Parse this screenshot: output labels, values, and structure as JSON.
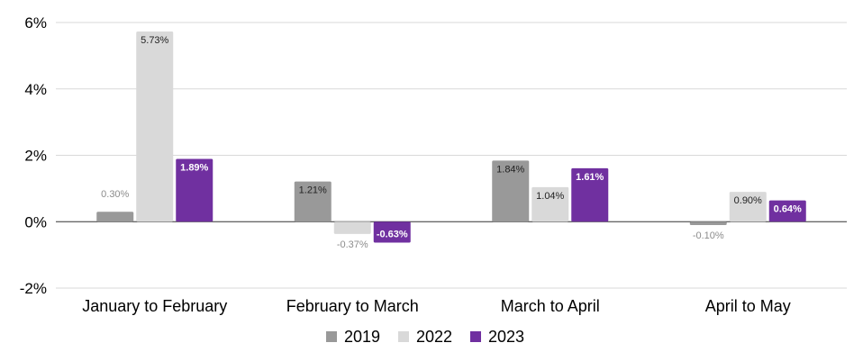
{
  "chart_data": {
    "type": "bar",
    "categories": [
      "January to February",
      "February to March",
      "March to April",
      "April to May"
    ],
    "series": [
      {
        "name": "2019",
        "color": "#999999",
        "values": [
          0.3,
          1.21,
          1.84,
          -0.1
        ],
        "labels": [
          "0.30%",
          "1.21%",
          "1.84%",
          "-0.10%"
        ]
      },
      {
        "name": "2022",
        "color": "#d9d9d9",
        "values": [
          5.73,
          -0.37,
          1.04,
          0.9
        ],
        "labels": [
          "5.73%",
          "-0.37%",
          "1.04%",
          "0.90%"
        ]
      },
      {
        "name": "2023",
        "color": "#7030a0",
        "values": [
          1.89,
          -0.63,
          1.61,
          0.64
        ],
        "labels": [
          "1.89%",
          "-0.63%",
          "1.61%",
          "0.64%"
        ]
      }
    ],
    "ylim": [
      -2,
      6
    ],
    "yticks": [
      -2,
      0,
      2,
      4,
      6
    ],
    "ytick_labels": [
      "-2%",
      "0%",
      "2%",
      "4%",
      "6%"
    ],
    "grid": true,
    "legend_position": "bottom",
    "title": "",
    "xlabel": "",
    "ylabel": ""
  }
}
